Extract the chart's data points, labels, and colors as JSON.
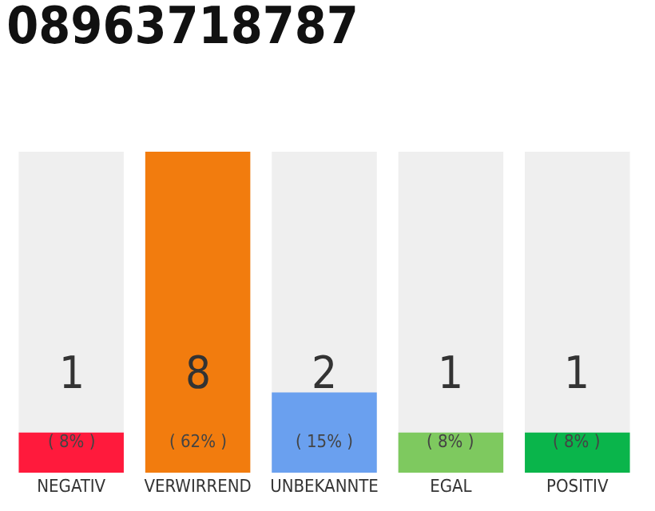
{
  "chart_data": {
    "type": "bar",
    "title": "08963718787",
    "categories": [
      "NEGATIV",
      "VERWIRREND",
      "UNBEKANNTE",
      "EGAL",
      "POSITIV"
    ],
    "values": [
      1,
      8,
      2,
      1,
      1
    ],
    "colors": [
      "#ff1a3c",
      "#f27c0e",
      "#6aa0ef",
      "#7ec95f",
      "#0ab54b"
    ],
    "data_labels": true,
    "annotations": [
      "( 8% )",
      "( 62% )",
      "( 15% )",
      "( 8% )",
      "( 8% )"
    ]
  }
}
